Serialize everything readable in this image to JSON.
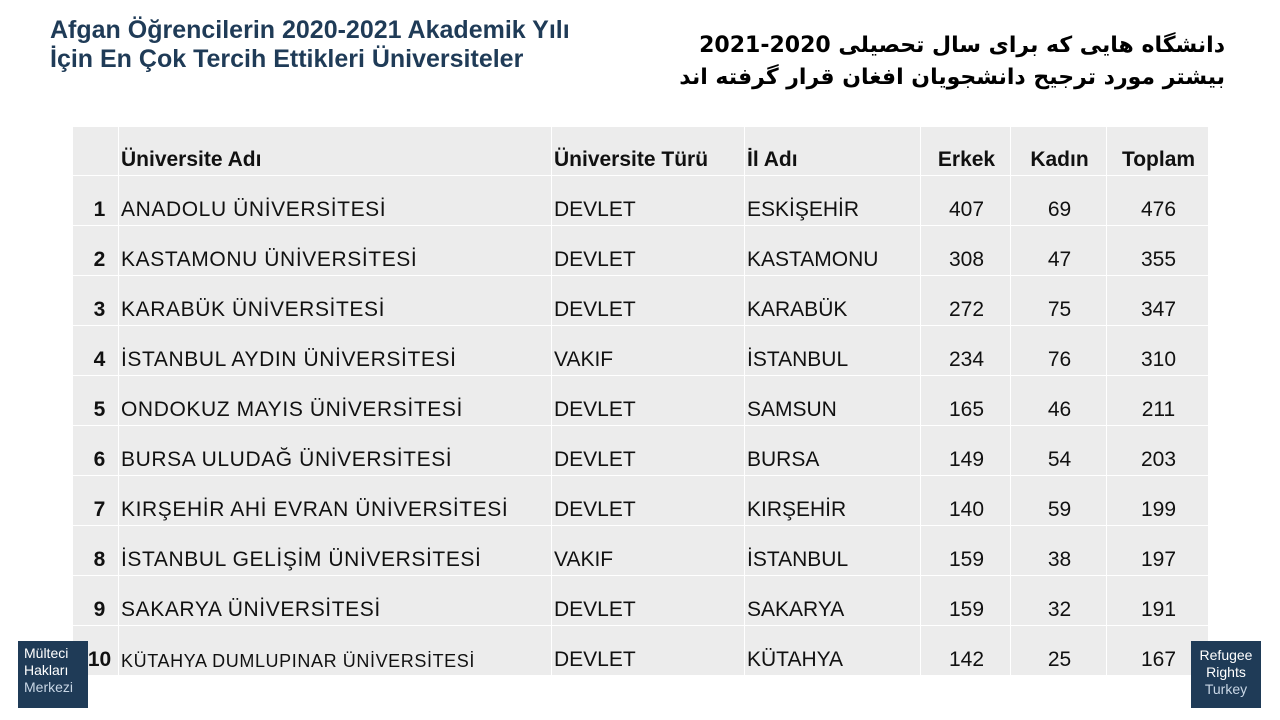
{
  "title_tr": "Afgan Öğrencilerin 2020-2021 Akademik Yılı İçin En Çok Tercih Ettikleri Üniversiteler",
  "title_fa": "دانشگاه هایی که برای سال تحصیلی 2020-2021 بیشتر مورد ترجیح دانشجویان افغان قرار گرفته اند",
  "table": {
    "headers": [
      "",
      "Üniversite Adı",
      "Üniversite Türü",
      "İl Adı",
      "Erkek",
      "Kadın",
      "Toplam"
    ],
    "rows": [
      {
        "no": "1",
        "name": "ANADOLU ÜNİVERSİTESİ",
        "type": "DEVLET",
        "city": "ESKİŞEHİR",
        "male": "407",
        "female": "69",
        "total": "476"
      },
      {
        "no": "2",
        "name": "KASTAMONU ÜNİVERSİTESİ",
        "type": "DEVLET",
        "city": "KASTAMONU",
        "male": "308",
        "female": "47",
        "total": "355"
      },
      {
        "no": "3",
        "name": "KARABÜK ÜNİVERSİTESİ",
        "type": "DEVLET",
        "city": "KARABÜK",
        "male": "272",
        "female": "75",
        "total": "347"
      },
      {
        "no": "4",
        "name": "İSTANBUL AYDIN ÜNİVERSİTESİ",
        "type": "VAKIF",
        "city": "İSTANBUL",
        "male": "234",
        "female": "76",
        "total": "310"
      },
      {
        "no": "5",
        "name": "ONDOKUZ MAYIS ÜNİVERSİTESİ",
        "type": "DEVLET",
        "city": "SAMSUN",
        "male": "165",
        "female": "46",
        "total": "211"
      },
      {
        "no": "6",
        "name": "BURSA ULUDAĞ ÜNİVERSİTESİ",
        "type": "DEVLET",
        "city": "BURSA",
        "male": "149",
        "female": "54",
        "total": "203"
      },
      {
        "no": "7",
        "name": "KIRŞEHİR AHİ EVRAN ÜNİVERSİTESİ",
        "type": "DEVLET",
        "city": "KIRŞEHİR",
        "male": "140",
        "female": "59",
        "total": "199"
      },
      {
        "no": "8",
        "name": "İSTANBUL GELİŞİM ÜNİVERSİTESİ",
        "type": "VAKIF",
        "city": "İSTANBUL",
        "male": "159",
        "female": "38",
        "total": "197"
      },
      {
        "no": "9",
        "name": "SAKARYA ÜNİVERSİTESİ",
        "type": "DEVLET",
        "city": "SAKARYA",
        "male": "159",
        "female": "32",
        "total": "191"
      },
      {
        "no": "10",
        "name": "KÜTAHYA DUMLUPINAR ÜNİVERSİTESİ",
        "type": "DEVLET",
        "city": "KÜTAHYA",
        "male": "142",
        "female": "25",
        "total": "167"
      }
    ]
  },
  "logo_left": {
    "lines": [
      "Mülteci",
      "Hakları",
      "Merkezi"
    ]
  },
  "logo_right": {
    "lines": [
      "Refugee",
      "Rights",
      "Turkey"
    ]
  },
  "colors": {
    "brand": "#1f3b57",
    "table_bg": "#ececec"
  }
}
